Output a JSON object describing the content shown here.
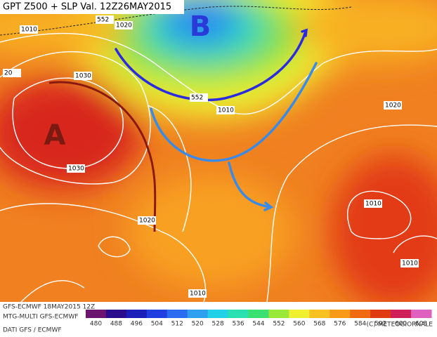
{
  "map": {
    "title": "GPT Z500 + SLP Val. 12Z26MAY2015",
    "centers": [
      "B",
      "A"
    ],
    "isobar_labels": [
      "1010",
      "552",
      "1020",
      "20",
      "1030",
      "1030",
      "552",
      "1010",
      "1020",
      "1020",
      "1010",
      "1010",
      "1010"
    ]
  },
  "footer": {
    "run": "GFS-ECMWF 18MAY2015 12Z",
    "model": "MTG-MULTI GFS-ECMWF",
    "source": "DATI GFS / ECMWF",
    "copyright": "(C) METEOGIORNALE"
  },
  "legend": {
    "ticks": [
      "480",
      "488",
      "496",
      "504",
      "512",
      "520",
      "528",
      "536",
      "544",
      "552",
      "560",
      "568",
      "576",
      "584",
      "592",
      "600",
      "608"
    ],
    "colors": [
      "#6b1470",
      "#2a0d8c",
      "#1a1fb8",
      "#1f3fe0",
      "#2a6cf0",
      "#2fa0f0",
      "#22d0e8",
      "#2ae0b0",
      "#3ae070",
      "#9ae83a",
      "#f0f030",
      "#f8c020",
      "#f89a18",
      "#f06a10",
      "#e03a10",
      "#d0205a",
      "#e060c0"
    ]
  }
}
